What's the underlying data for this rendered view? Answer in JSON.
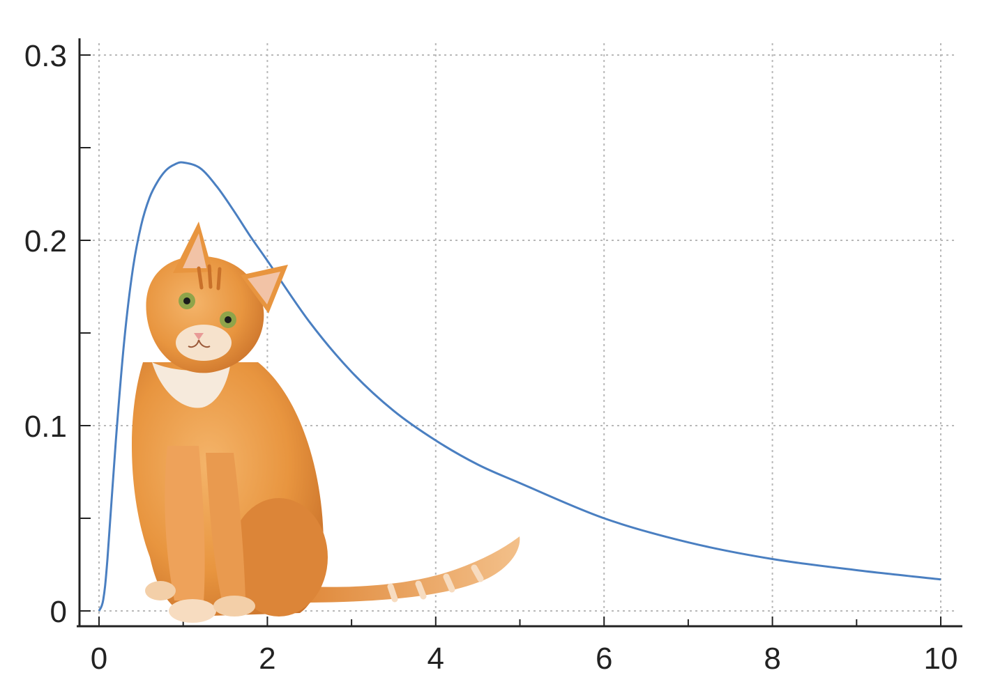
{
  "chart_data": {
    "type": "line",
    "title": "",
    "xlabel": "",
    "ylabel": "",
    "xlim": [
      0,
      10
    ],
    "ylim": [
      0,
      0.3
    ],
    "x_ticks": [
      0,
      2,
      4,
      6,
      8,
      10
    ],
    "x_tick_labels": [
      "0",
      "2",
      "4",
      "6",
      "8",
      "10"
    ],
    "x_minor_ticks": [
      1,
      3,
      5,
      7,
      9
    ],
    "y_ticks": [
      0,
      0.1,
      0.2,
      0.3
    ],
    "y_tick_labels": [
      "0",
      "0.1",
      "0.2",
      "0.3"
    ],
    "y_minor_ticks": [
      0.05,
      0.15,
      0.25
    ],
    "grid": true,
    "legend": "none",
    "series": [
      {
        "color": "#4a7fc1",
        "x": [
          0,
          0.05,
          0.1,
          0.2,
          0.3,
          0.4,
          0.5,
          0.6,
          0.7,
          0.8,
          0.9,
          1.0,
          1.2,
          1.4,
          1.6,
          1.8,
          2.0,
          2.5,
          3.0,
          3.5,
          4.0,
          4.5,
          5.0,
          6.0,
          7.0,
          8.0,
          9.0,
          10.0
        ],
        "y": [
          0,
          0.006,
          0.028,
          0.092,
          0.146,
          0.184,
          0.208,
          0.223,
          0.232,
          0.238,
          0.241,
          0.242,
          0.239,
          0.229,
          0.216,
          0.202,
          0.189,
          0.156,
          0.129,
          0.108,
          0.092,
          0.079,
          0.069,
          0.05,
          0.037,
          0.028,
          0.022,
          0.017
        ]
      }
    ]
  },
  "illustration": {
    "subject": "orange-tabby-cat",
    "fur_color": "#e8953f",
    "chest_color": "#f6eadc",
    "eye_color": "#8fa44a"
  }
}
